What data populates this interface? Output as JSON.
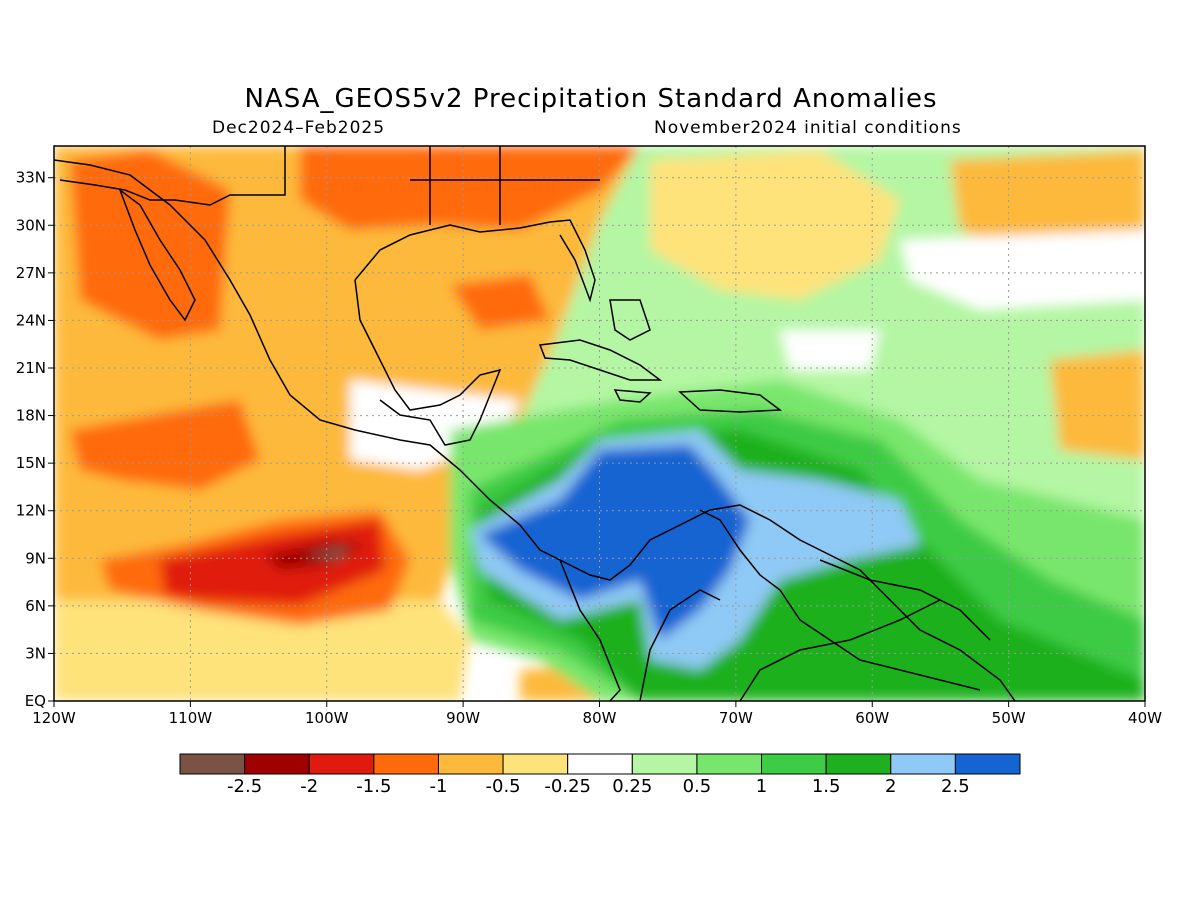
{
  "title": "NASA_GEOS5v2 Precipitation Standard Anomalies",
  "subtitle_left": "Dec2024–Feb2025",
  "subtitle_right": "November2024 initial conditions",
  "map": {
    "lon_range": [
      -120,
      -40
    ],
    "lat_range": [
      0,
      35
    ],
    "lon_ticks": [
      {
        "v": -120,
        "label": "120W"
      },
      {
        "v": -110,
        "label": "110W"
      },
      {
        "v": -100,
        "label": "100W"
      },
      {
        "v": -90,
        "label": "90W"
      },
      {
        "v": -80,
        "label": "80W"
      },
      {
        "v": -70,
        "label": "70W"
      },
      {
        "v": -60,
        "label": "60W"
      },
      {
        "v": -50,
        "label": "50W"
      },
      {
        "v": -40,
        "label": "40W"
      }
    ],
    "lat_ticks": [
      {
        "v": 0,
        "label": "EQ"
      },
      {
        "v": 3,
        "label": "3N"
      },
      {
        "v": 6,
        "label": "6N"
      },
      {
        "v": 9,
        "label": "9N"
      },
      {
        "v": 12,
        "label": "12N"
      },
      {
        "v": 15,
        "label": "15N"
      },
      {
        "v": 18,
        "label": "18N"
      },
      {
        "v": 21,
        "label": "21N"
      },
      {
        "v": 24,
        "label": "24N"
      },
      {
        "v": 27,
        "label": "27N"
      },
      {
        "v": 30,
        "label": "30N"
      },
      {
        "v": 33,
        "label": "33N"
      }
    ],
    "grid": "dotted"
  },
  "colorbar": {
    "colors": [
      "#7b5345",
      "#a00000",
      "#e01a0e",
      "#ff6a0a",
      "#fdb93a",
      "#fee27a",
      "#ffffff",
      "#b4f6a3",
      "#78e66c",
      "#3ecb45",
      "#1eb01e",
      "#8fc9f5",
      "#1464d2"
    ],
    "labels": [
      "-2.5",
      "-2",
      "-1.5",
      "-1",
      "-0.5",
      "-0.25",
      "0.25",
      "0.5",
      "1",
      "1.5",
      "2",
      "2.5"
    ]
  }
}
